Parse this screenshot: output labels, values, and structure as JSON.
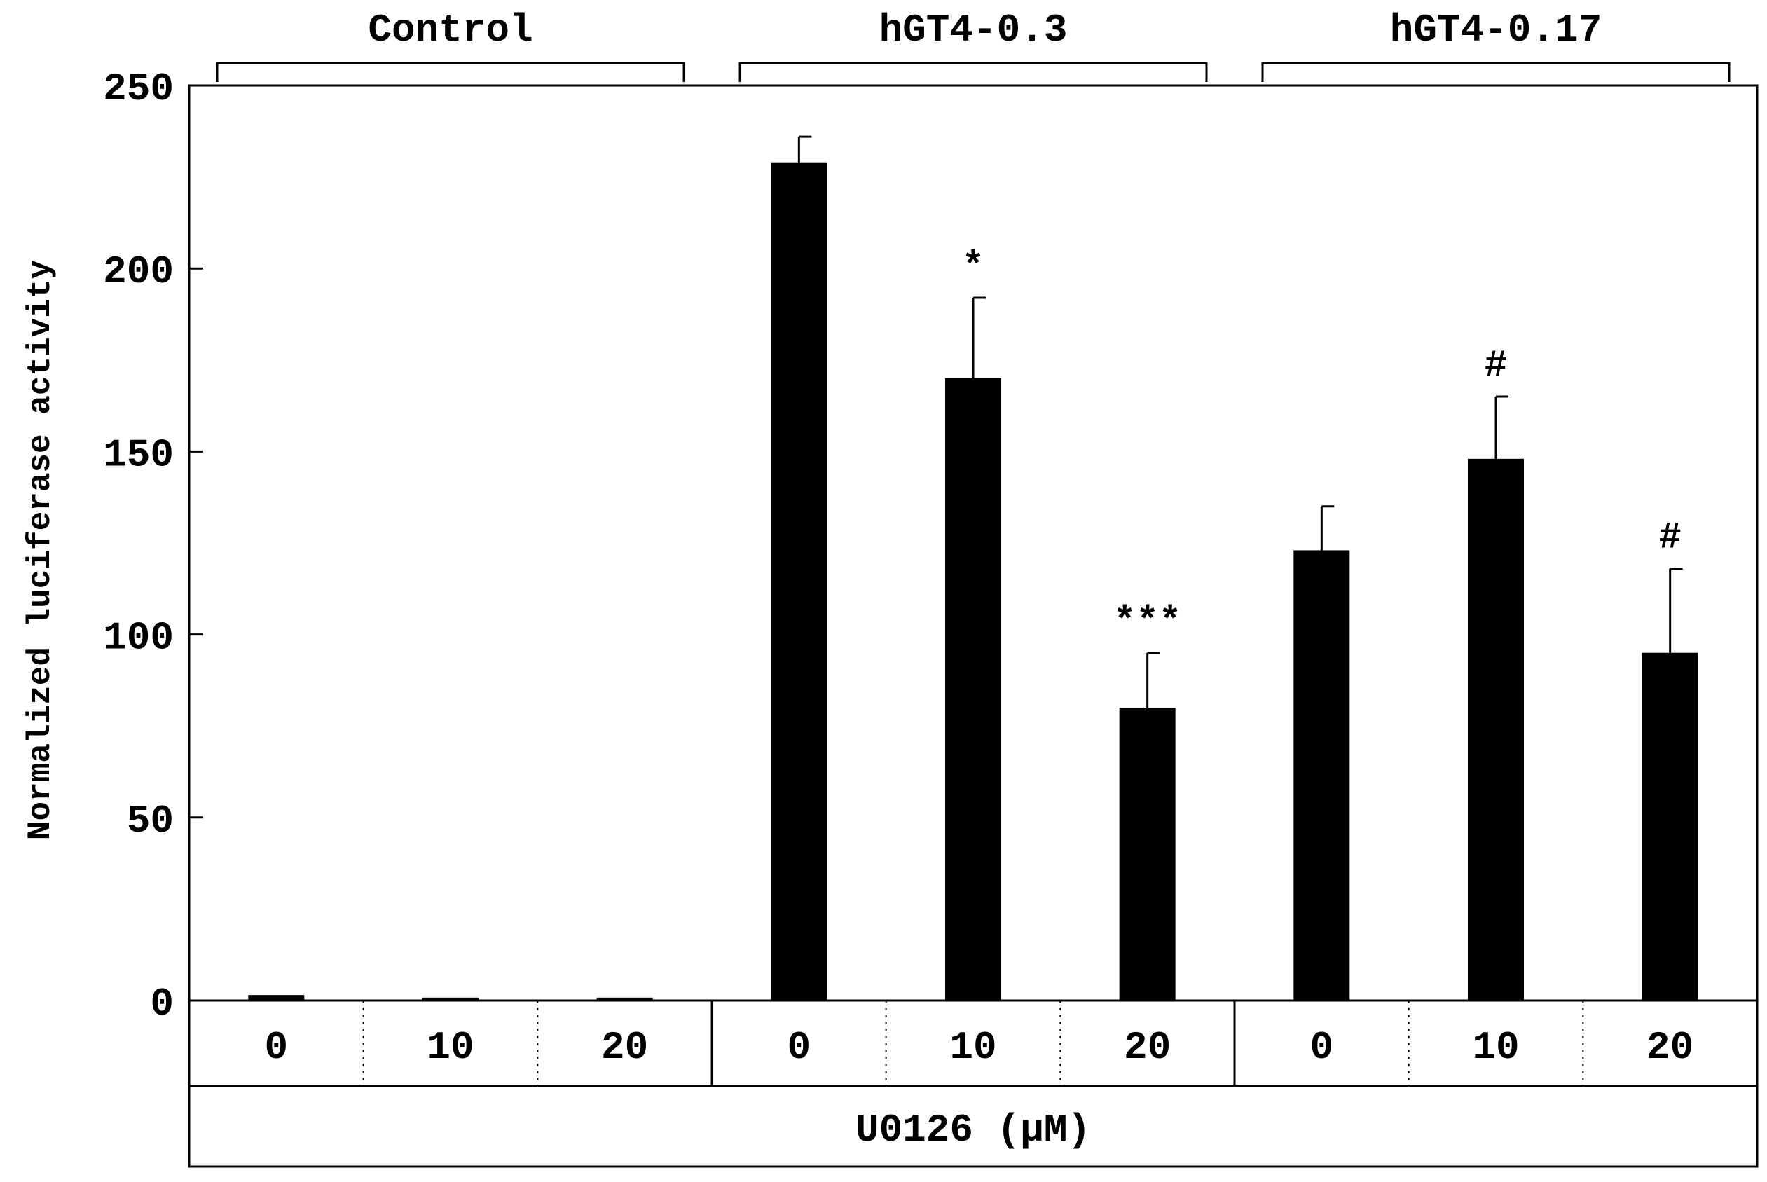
{
  "chart_data": {
    "type": "bar",
    "ylabel": "Normalized luciferase activity",
    "ylim": [
      0,
      250
    ],
    "yticks": [
      0,
      50,
      100,
      150,
      200,
      250
    ],
    "groups": [
      {
        "name": "Control",
        "categories": [
          "0",
          "10",
          "20"
        ],
        "values": [
          1.5,
          0.8,
          0.8
        ],
        "errors": [
          0,
          0,
          0
        ],
        "annotations": [
          "",
          "",
          ""
        ]
      },
      {
        "name": "hGT4-0.3",
        "categories": [
          "0",
          "10",
          "20"
        ],
        "values": [
          229,
          170,
          80
        ],
        "errors": [
          7,
          22,
          15
        ],
        "annotations": [
          "",
          "*",
          "***"
        ]
      },
      {
        "name": "hGT4-0.17",
        "categories": [
          "0",
          "10",
          "20"
        ],
        "values": [
          123,
          148,
          95
        ],
        "errors": [
          12,
          17,
          23
        ],
        "annotations": [
          "",
          "#",
          "#"
        ]
      }
    ],
    "xlabel": "U0126 (μM)",
    "bar_color": "#000000",
    "grid": false
  }
}
